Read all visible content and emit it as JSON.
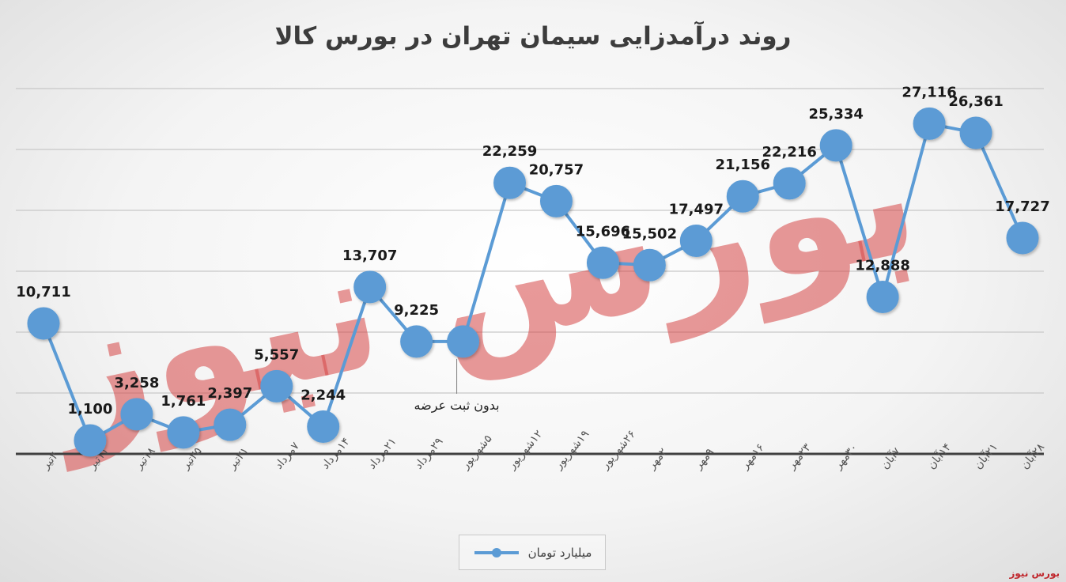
{
  "title": "روند درآمدزایی سیمان تهران در بورس کالا",
  "legend": {
    "series_name": "میلیارد تومان",
    "color": "#5b9bd5"
  },
  "annotation": {
    "text": "بدون ثبت عرضه",
    "category_index": 9
  },
  "watermark": {
    "text": "بورس نیوز",
    "color": "#d64545"
  },
  "brand": "بورس نیوز",
  "colors": {
    "line": "#5b9bd5",
    "grid": "#c8c8c8",
    "axis": "#404040",
    "label": "#1a1a1a"
  },
  "chart_data": {
    "type": "line",
    "title": "روند درآمدزایی سیمان تهران در بورس کالا",
    "categories": [
      "۴تیر",
      "۱۱تیر",
      "۱۸تیر",
      "۲۵تیر",
      "۳۱تیر",
      "۷مرداد",
      "۱۴مرداد",
      "۲۱مرداد",
      "۲۹مرداد",
      "۵شهریور",
      "۱۲شهریور",
      "۱۹شهریور",
      "۲۶شهریور",
      "۲مهر",
      "۹مهر",
      "۱۶مهر",
      "۲۳مهر",
      "۳۰مهر",
      "۷آبان",
      "۱۴آبان",
      "۲۱آبان",
      "۲۸آبان"
    ],
    "series": [
      {
        "name": "میلیارد تومان",
        "values": [
          10711,
          1100,
          3258,
          1761,
          2397,
          5557,
          2244,
          13707,
          9225,
          9225,
          22259,
          20757,
          15696,
          15502,
          17497,
          21156,
          22216,
          25334,
          12888,
          27116,
          26361,
          17727
        ],
        "labels": [
          "10,711",
          "1,100",
          "3,258",
          "1,761",
          "2,397",
          "5,557",
          "2,244",
          "13,707",
          "9,225",
          "",
          "22,259",
          "20,757",
          "15,696",
          "15,502",
          "17,497",
          "21,156",
          "22,216",
          "25,334",
          "12,888",
          "27,116",
          "26,361",
          "17,727"
        ]
      }
    ],
    "ylim": [
      0,
      30000
    ],
    "grid": true,
    "legend_position": "bottom",
    "xlabel": "",
    "ylabel": ""
  }
}
